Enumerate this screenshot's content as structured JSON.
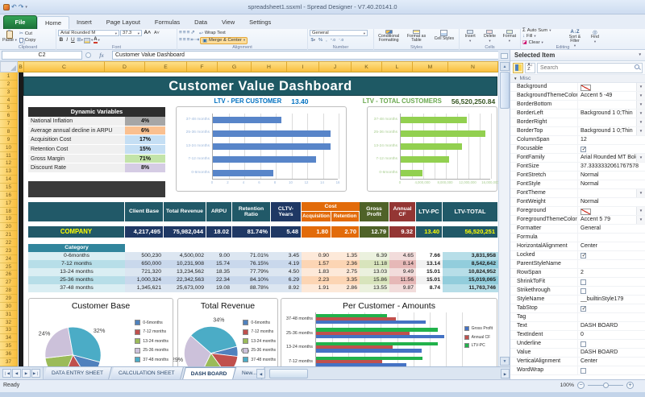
{
  "window": {
    "title": "spreadsheet1.ssxml - Spread Designer - V7.40.20141.0",
    "file_button": "File",
    "tabs": [
      "Home",
      "Insert",
      "Page Layout",
      "Formulas",
      "Data",
      "View",
      "Settings"
    ],
    "active_tab": "Home"
  },
  "ribbon": {
    "clipboard": {
      "label": "Clipboard",
      "paste": "Paste",
      "cut": "Cut",
      "copy": "Copy"
    },
    "font": {
      "label": "Font",
      "font_name": "Arial Rounded M",
      "font_size": "37.3"
    },
    "alignment": {
      "label": "Alignment",
      "wrap_text": "Wrap Text",
      "merge_center": "Merge & Center"
    },
    "number": {
      "label": "Number",
      "format": "General"
    },
    "styles": {
      "label": "Styles",
      "items": [
        "Conditional Formatting",
        "Format as Table",
        "Cell Styles"
      ]
    },
    "cells": {
      "label": "Cells",
      "items": [
        "Insert",
        "Delete",
        "Format"
      ]
    },
    "editing": {
      "label": "Editing",
      "auto_sum": "Auto Sum",
      "fill": "Fill",
      "clear": "Clear",
      "sort_filter": "Sort & Filter",
      "find": "Find"
    }
  },
  "formula_bar": {
    "cell_ref": "C2",
    "formula": "Customer Value Dashboard"
  },
  "sheet": {
    "columns": [
      "B",
      "C",
      "D",
      "E",
      "F",
      "G",
      "H",
      "I",
      "J",
      "K",
      "L",
      "M",
      "N"
    ],
    "row_count": 37
  },
  "theme": {
    "banner_teal": "#1E5964",
    "table_teal": "#215968",
    "navy": "#17375E",
    "orange": "#E26B0A",
    "olive": "#4F6228",
    "dark_red": "#943634",
    "gold_header": "#F9C646",
    "ltv_blue": "#0070C0",
    "ltv_green": "#6AA84F"
  },
  "dashboard": {
    "title": "Customer Value Dashboard",
    "dynamic_variables": {
      "title": "Dynamic Variables",
      "rows": [
        {
          "label": "National Inflation",
          "value": "4%",
          "color": "#A6A6A6"
        },
        {
          "label": "Average annual decline in ARPU",
          "value": "6%",
          "color": "#FAC090"
        },
        {
          "label": "Acquisition Cost",
          "value": "17%",
          "color": "#C5DFF4"
        },
        {
          "label": "Retention Cost",
          "value": "15%",
          "color": "#C5DFF4"
        },
        {
          "label": "Gross Margin",
          "value": "71%",
          "color": "#C3E4A9"
        },
        {
          "label": "Discount Rate",
          "value": "8%",
          "color": "#D5CCE4"
        }
      ]
    },
    "table": {
      "headers": [
        "Client Base",
        "Total Revenue",
        "ARPU",
        "Retention Ratio",
        "CLTV-Years",
        "Cost",
        "Acquisition",
        "Retention",
        "Gross Profit",
        "Annual CF",
        "LTV-PC",
        "LTV-TOTAL"
      ],
      "company": {
        "label": "COMPANY",
        "values": [
          "4,217,495",
          "75,982,044",
          "18.02",
          "81.74%",
          "5.48",
          "1.80",
          "2.70",
          "12.79",
          "9.32",
          "13.40",
          "56,520,251"
        ]
      },
      "category_header": "Category",
      "rows": [
        {
          "label": "0-6months",
          "values": [
            "500,230",
            "4,500,002",
            "9.00",
            "71.01%",
            "3.45",
            "0.90",
            "1.35",
            "6.39",
            "4.65",
            "7.66",
            "3,831,958"
          ]
        },
        {
          "label": "7-12 months",
          "values": [
            "650,000",
            "10,231,908",
            "15.74",
            "76.15%",
            "4.19",
            "1.57",
            "2.36",
            "11.18",
            "8.14",
            "13.14",
            "8,542,642"
          ]
        },
        {
          "label": "13-24 months",
          "values": [
            "721,320",
            "13,234,562",
            "18.35",
            "77.79%",
            "4.50",
            "1.83",
            "2.75",
            "13.03",
            "9.49",
            "15.01",
            "10,824,952"
          ]
        },
        {
          "label": "25-36 months",
          "values": [
            "1,000,324",
            "22,342,563",
            "22.34",
            "84.10%",
            "6.29",
            "2.23",
            "3.35",
            "15.86",
            "11.56",
            "15.01",
            "15,019,065"
          ]
        },
        {
          "label": "37-48 months",
          "values": [
            "1,345,621",
            "25,673,009",
            "19.08",
            "88.78%",
            "8.92",
            "1.91",
            "2.86",
            "13.55",
            "9.87",
            "8.74",
            "11,763,746"
          ]
        }
      ]
    }
  },
  "chart_data": [
    {
      "id": "ltv_per_customer",
      "type": "bar",
      "orientation": "horizontal",
      "title": "LTV - PER CUSTOMER",
      "headline": "13.40",
      "categories": [
        "37-48 months",
        "25-36 months",
        "13-24 months",
        "7-12 months",
        "0-6months"
      ],
      "values": [
        8.74,
        15.01,
        15.01,
        13.14,
        7.66
      ],
      "xlim": [
        0,
        16
      ],
      "xticks": [
        "0",
        "2",
        "4",
        "6",
        "8",
        "10",
        "12",
        "14",
        "16"
      ],
      "color": "#5885C9",
      "grid": true,
      "legend_position": "none"
    },
    {
      "id": "ltv_total_customers",
      "type": "bar",
      "orientation": "horizontal",
      "title": "LTV - TOTAL CUSTOMERS",
      "headline": "56,520,250.84",
      "categories": [
        "37-48 months",
        "25-36 months",
        "13-24 months",
        "7-12 months",
        "0-6months"
      ],
      "values": [
        11763746,
        15019065,
        10824952,
        8542642,
        3831958
      ],
      "xlim": [
        0,
        16000000
      ],
      "xticks": [
        "0",
        "4,000,000",
        "8,000,000",
        "12,000,000",
        "16,000,000"
      ],
      "color": "#92D050",
      "grid": true,
      "legend_position": "none"
    },
    {
      "id": "customer_base",
      "type": "pie",
      "title": "Customer Base",
      "categories": [
        "0-6months",
        "7-12 months",
        "13-24 months",
        "25-36 months",
        "37-48 months"
      ],
      "values": [
        12,
        15,
        17,
        24,
        32
      ],
      "labels": [
        "12%",
        "15%",
        "17%",
        "24%",
        "32%"
      ],
      "colors": [
        "#4F81BD",
        "#C0504D",
        "#9BBB59",
        "#CCC1DA",
        "#4BACC6"
      ],
      "start_angle": 105,
      "legend_position": "right"
    },
    {
      "id": "total_revenue",
      "type": "pie",
      "title": "Total Revenue",
      "categories": [
        "0-6months",
        "7-12 months",
        "13-24 months",
        "25-36 months",
        "37-48 months"
      ],
      "values": [
        6,
        13,
        17,
        29,
        34
      ],
      "labels": [
        "6%",
        "13%",
        "17%",
        "29%",
        "34%"
      ],
      "colors": [
        "#4F81BD",
        "#C0504D",
        "#9BBB59",
        "#CCC1DA",
        "#4BACC6"
      ],
      "start_angle": 75,
      "legend_position": "right"
    },
    {
      "id": "per_customer_amounts",
      "type": "bar",
      "orientation": "horizontal",
      "grouped": true,
      "title": "Per Customer - Amounts",
      "categories": [
        "37-48 months",
        "25-36 months",
        "13-24 months",
        "7-12 months",
        "0-6months"
      ],
      "series": [
        {
          "name": "Gross Profit",
          "color": "#4472C4",
          "values": [
            13.55,
            15.86,
            13.03,
            11.18,
            6.39
          ]
        },
        {
          "name": "Annual CF",
          "color": "#C0504D",
          "values": [
            9.87,
            11.56,
            9.49,
            8.14,
            4.65
          ]
        },
        {
          "name": "LTV-PC",
          "color": "#21B24B",
          "values": [
            8.74,
            15.01,
            15.01,
            13.14,
            7.66
          ]
        }
      ],
      "xlim": [
        0,
        18
      ],
      "grid": true,
      "legend_position": "right"
    }
  ],
  "sheet_tabs": {
    "tabs": [
      "DATA ENTRY SHEET",
      "CALCULATION SHEET",
      "DASH BOARD",
      "New..."
    ],
    "active": "DASH BOARD"
  },
  "status_bar": {
    "text": "Ready",
    "zoom_level": "100%"
  },
  "properties_panel": {
    "title": "Selected Item",
    "search_placeholder": "Search",
    "category": "Misc",
    "rows": [
      {
        "name": "Background",
        "value": "",
        "type": "nocolor_dd"
      },
      {
        "name": "BackgroundThemeColor",
        "value": "Accent 5 -49",
        "type": "dd"
      },
      {
        "name": "BorderBottom",
        "value": "",
        "type": "dd"
      },
      {
        "name": "BorderLeft",
        "value": "Background 1 0;Thin",
        "type": "dd"
      },
      {
        "name": "BorderRight",
        "value": "",
        "type": "dd"
      },
      {
        "name": "BorderTop",
        "value": "Background 1 0;Thin",
        "type": "dd"
      },
      {
        "name": "ColumnSpan",
        "value": "12",
        "type": "text"
      },
      {
        "name": "Focusable",
        "value": true,
        "type": "check"
      },
      {
        "name": "FontFamily",
        "value": "Arial Rounded MT Bold",
        "type": "dd"
      },
      {
        "name": "FontSize",
        "value": "37.3333332061767578",
        "type": "text"
      },
      {
        "name": "FontStretch",
        "value": "Normal",
        "type": "text"
      },
      {
        "name": "FontStyle",
        "value": "Normal",
        "type": "text"
      },
      {
        "name": "FontTheme",
        "value": "",
        "type": "dd"
      },
      {
        "name": "FontWeight",
        "value": "Normal",
        "type": "text"
      },
      {
        "name": "Foreground",
        "value": "",
        "type": "nocolor_dd"
      },
      {
        "name": "ForegroundThemeColor",
        "value": "Accent 5 79",
        "type": "dd"
      },
      {
        "name": "Formatter",
        "value": "General",
        "type": "text"
      },
      {
        "name": "Formula",
        "value": "",
        "type": "text"
      },
      {
        "name": "HorizontalAlignment",
        "value": "Center",
        "type": "text"
      },
      {
        "name": "Locked",
        "value": true,
        "type": "check"
      },
      {
        "name": "ParentStyleName",
        "value": "",
        "type": "text"
      },
      {
        "name": "RowSpan",
        "value": "2",
        "type": "text"
      },
      {
        "name": "ShrinkToFit",
        "value": false,
        "type": "check"
      },
      {
        "name": "Strikethrough",
        "value": false,
        "type": "check"
      },
      {
        "name": "StyleName",
        "value": "__builtinStyle179",
        "type": "text"
      },
      {
        "name": "TabStop",
        "value": true,
        "type": "check"
      },
      {
        "name": "Tag",
        "value": "",
        "type": "text"
      },
      {
        "name": "Text",
        "value": "DASH BOARD",
        "type": "text"
      },
      {
        "name": "TextIndent",
        "value": "0",
        "type": "text"
      },
      {
        "name": "Underline",
        "value": false,
        "type": "check"
      },
      {
        "name": "Value",
        "value": "DASH BOARD",
        "type": "text"
      },
      {
        "name": "VerticalAlignment",
        "value": "Center",
        "type": "text"
      },
      {
        "name": "WordWrap",
        "value": false,
        "type": "check"
      }
    ]
  }
}
